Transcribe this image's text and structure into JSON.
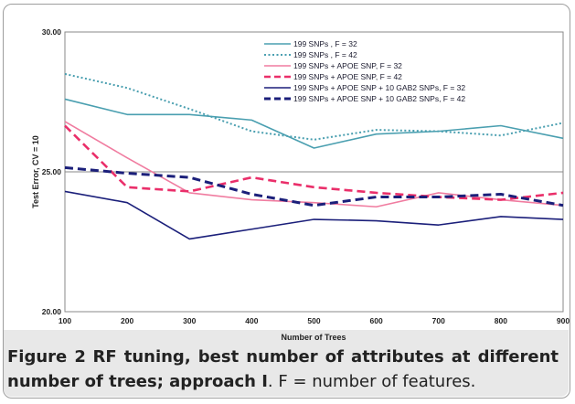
{
  "caption": {
    "label": "Figure 2",
    "title": "RF tuning, best number of attributes at different number of trees; approach I",
    "note": ". F = number of features."
  },
  "chart_data": {
    "type": "line",
    "x": [
      100,
      200,
      300,
      400,
      500,
      600,
      700,
      800,
      900
    ],
    "xlabel": "Number of Trees",
    "ylabel": "Test Error, CV = 10",
    "ylim": [
      20,
      30
    ],
    "xlim": [
      100,
      900
    ],
    "y_ticks": [
      "20.00",
      "25.00",
      "30.00"
    ],
    "y_tick_values": [
      20,
      25,
      30
    ],
    "grid": "horizontal",
    "legend_position": "top-right",
    "series": [
      {
        "name": "199 SNPs , F = 32",
        "color": "#4a9fb0",
        "dash": "solid",
        "width": 1.6,
        "values": [
          27.6,
          27.05,
          27.05,
          26.85,
          25.85,
          26.35,
          26.45,
          26.65,
          26.2
        ]
      },
      {
        "name": "199 SNPs , F = 42",
        "color": "#4a9fb0",
        "dash": "dotted",
        "width": 2,
        "values": [
          28.5,
          28.0,
          27.25,
          26.45,
          26.15,
          26.5,
          26.45,
          26.3,
          26.75
        ]
      },
      {
        "name": "199 SNPs + APOE SNP,  F = 32",
        "color": "#f07ca0",
        "dash": "solid",
        "width": 1.6,
        "values": [
          26.8,
          25.5,
          24.25,
          24.0,
          23.9,
          23.75,
          24.25,
          24.0,
          23.8
        ]
      },
      {
        "name": "199 SNPs + APOE SNP,  F = 42",
        "color": "#ea2f6a",
        "dash": "dashed",
        "width": 2.6,
        "values": [
          26.65,
          24.45,
          24.3,
          24.8,
          24.45,
          24.25,
          24.1,
          24.0,
          24.25
        ]
      },
      {
        "name": "199 SNPs + APOE SNP + 10 GAB2 SNPs,  F = 32",
        "color": "#1b1f7a",
        "dash": "solid",
        "width": 1.6,
        "values": [
          24.3,
          23.9,
          22.6,
          22.95,
          23.3,
          23.25,
          23.1,
          23.4,
          23.3
        ]
      },
      {
        "name": "199 SNPs + APOE SNP + 10 GAB2 SNPs,  F = 42",
        "color": "#1b1f7a",
        "dash": "dashed",
        "width": 3,
        "values": [
          25.15,
          24.95,
          24.8,
          24.2,
          23.8,
          24.1,
          24.1,
          24.2,
          23.8
        ]
      }
    ]
  }
}
